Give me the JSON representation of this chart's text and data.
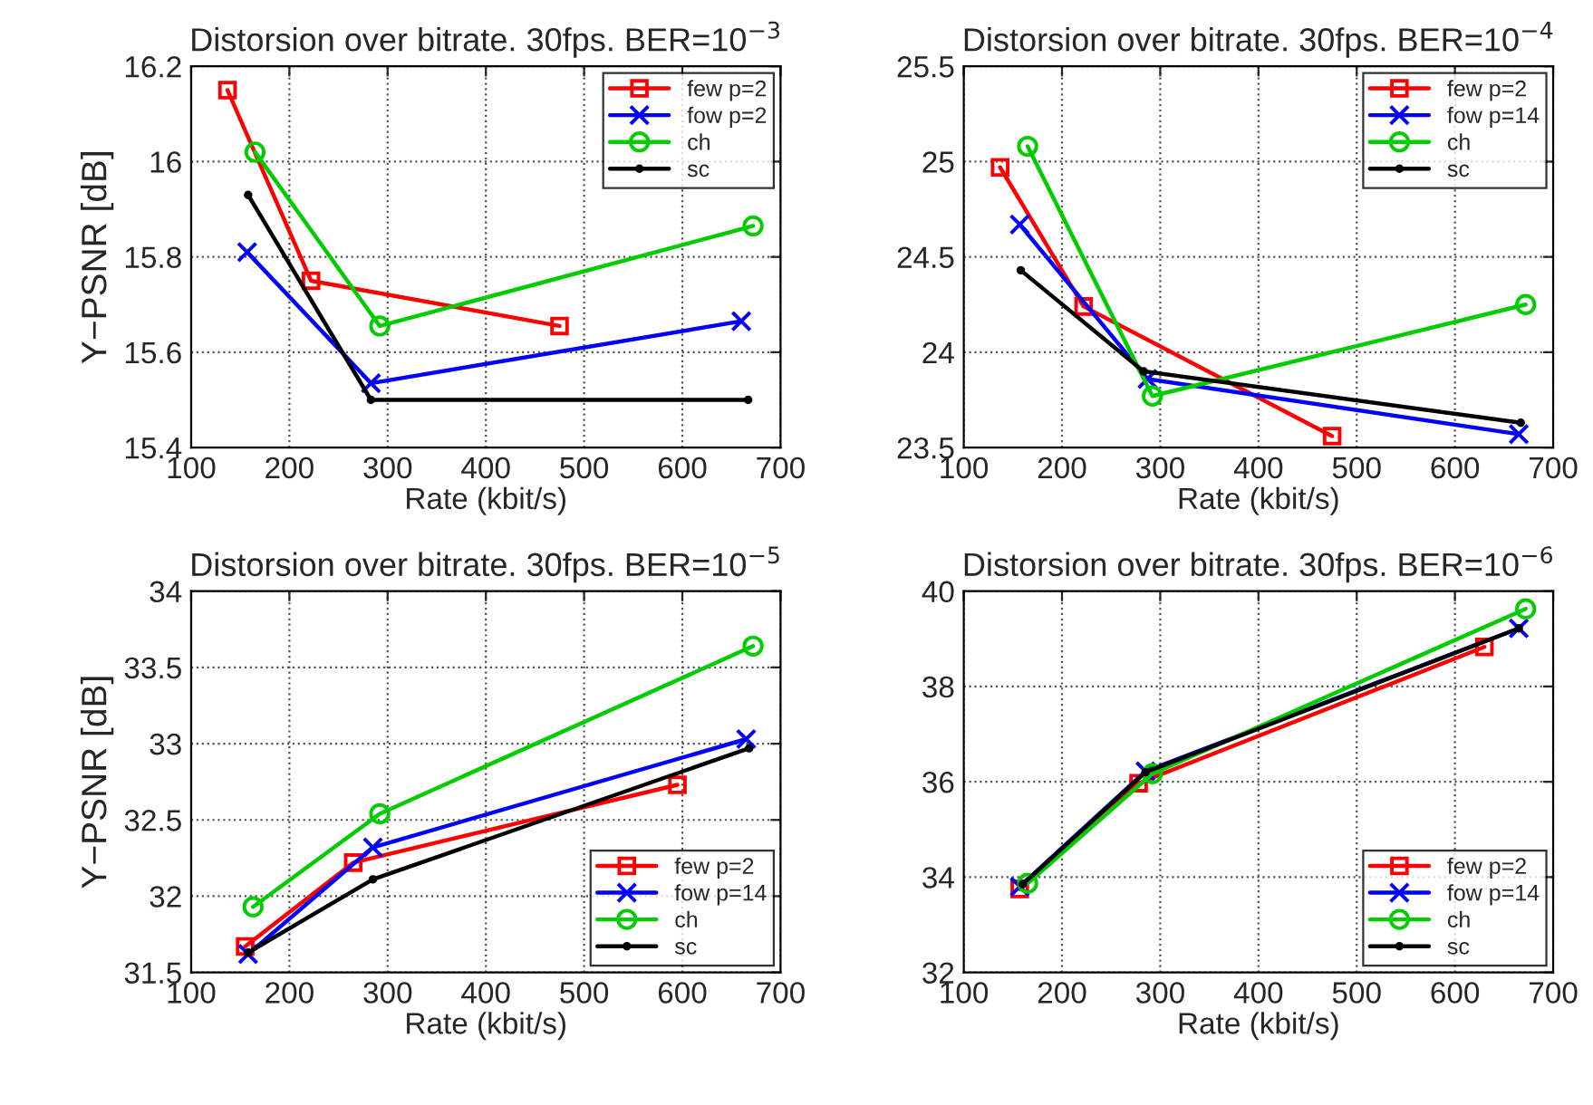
{
  "chart_data": [
    {
      "type": "line",
      "title": "Distorsion over bitrate. 30fps. BER=10$^{−3}$",
      "xlabel": "Rate (kbit/s)",
      "ylabel": "Y−PSNR [dB]",
      "xlim": [
        100,
        700
      ],
      "xticks": [
        100,
        200,
        300,
        400,
        500,
        600,
        700
      ],
      "ylim": [
        15.4,
        16.2
      ],
      "yticks": [
        15.4,
        15.6,
        15.8,
        16,
        16.2
      ],
      "grid": true,
      "legend": "top right",
      "series": [
        {
          "name": "few p=2",
          "color": "#ff0000",
          "marker": "square",
          "x": [
            137,
            222,
            475
          ],
          "values": [
            16.15,
            15.75,
            15.655
          ]
        },
        {
          "name": "fow p=2",
          "color": "#0000ff",
          "marker": "cross",
          "x": [
            157,
            283,
            660
          ],
          "values": [
            15.81,
            15.535,
            15.665
          ]
        },
        {
          "name": "ch",
          "color": "#00cc00",
          "marker": "circle",
          "x": [
            165,
            292,
            672
          ],
          "values": [
            16.02,
            15.655,
            15.865
          ]
        },
        {
          "name": "sc",
          "color": "#000000",
          "marker": "point",
          "x": [
            158,
            283,
            667
          ],
          "values": [
            15.93,
            15.5,
            15.5
          ]
        }
      ]
    },
    {
      "type": "line",
      "title": "Distorsion over bitrate. 30fps. BER=10$^{−4}$",
      "xlabel": "Rate (kbit/s)",
      "xlim": [
        100,
        700
      ],
      "xticks": [
        100,
        200,
        300,
        400,
        500,
        600,
        700
      ],
      "ylim": [
        23.5,
        25.5
      ],
      "yticks": [
        23.5,
        24,
        24.5,
        25,
        25.5
      ],
      "grid": true,
      "legend": "top right",
      "series": [
        {
          "name": "few p=2",
          "color": "#ff0000",
          "marker": "square",
          "x": [
            137,
            222,
            475
          ],
          "values": [
            24.97,
            24.24,
            23.56
          ]
        },
        {
          "name": "fow p=14",
          "color": "#0000ff",
          "marker": "cross",
          "x": [
            157,
            287,
            665
          ],
          "values": [
            24.67,
            23.86,
            23.57
          ]
        },
        {
          "name": "ch",
          "color": "#00cc00",
          "marker": "circle",
          "x": [
            165,
            292,
            672
          ],
          "values": [
            25.08,
            23.77,
            24.25
          ]
        },
        {
          "name": "sc",
          "color": "#000000",
          "marker": "point",
          "x": [
            158,
            283,
            667
          ],
          "values": [
            24.43,
            23.9,
            23.63
          ]
        }
      ]
    },
    {
      "type": "line",
      "title": "Distorsion over bitrate. 30fps. BER=10$^{−5}$",
      "xlabel": "Rate (kbit/s)",
      "ylabel": "Y−PSNR [dB]",
      "xlim": [
        100,
        700
      ],
      "xticks": [
        100,
        200,
        300,
        400,
        500,
        600,
        700
      ],
      "ylim": [
        31.5,
        34
      ],
      "yticks": [
        31.5,
        32,
        32.5,
        33,
        33.5,
        34
      ],
      "grid": true,
      "legend": "bottom right",
      "series": [
        {
          "name": "few p=2",
          "color": "#ff0000",
          "marker": "square",
          "x": [
            155,
            265,
            595
          ],
          "values": [
            31.67,
            32.22,
            32.73
          ]
        },
        {
          "name": "fow p=14",
          "color": "#0000ff",
          "marker": "cross",
          "x": [
            158,
            285,
            665
          ],
          "values": [
            31.62,
            32.32,
            33.03
          ]
        },
        {
          "name": "ch",
          "color": "#00cc00",
          "marker": "circle",
          "x": [
            163,
            292,
            672
          ],
          "values": [
            31.93,
            32.54,
            33.64
          ]
        },
        {
          "name": "sc",
          "color": "#000000",
          "marker": "point",
          "x": [
            158,
            285,
            668
          ],
          "values": [
            31.63,
            32.11,
            32.97
          ]
        }
      ]
    },
    {
      "type": "line",
      "title": "Distorsion over bitrate. 30fps. BER=10$^{−6}$",
      "xlabel": "Rate (kbit/s)",
      "xlim": [
        100,
        700
      ],
      "xticks": [
        100,
        200,
        300,
        400,
        500,
        600,
        700
      ],
      "ylim": [
        32,
        40
      ],
      "yticks": [
        32,
        34,
        36,
        38,
        40
      ],
      "grid": true,
      "legend": "bottom right",
      "series": [
        {
          "name": "few p=2",
          "color": "#ff0000",
          "marker": "square",
          "x": [
            157,
            278,
            630
          ],
          "values": [
            33.75,
            35.97,
            38.83
          ]
        },
        {
          "name": "fow p=14",
          "color": "#0000ff",
          "marker": "cross",
          "x": [
            157,
            285,
            665
          ],
          "values": [
            33.8,
            36.22,
            39.22
          ]
        },
        {
          "name": "ch",
          "color": "#00cc00",
          "marker": "circle",
          "x": [
            165,
            292,
            672
          ],
          "values": [
            33.87,
            36.17,
            39.63
          ]
        },
        {
          "name": "sc",
          "color": "#000000",
          "marker": "point",
          "x": [
            160,
            285,
            665
          ],
          "values": [
            33.85,
            36.2,
            39.22
          ]
        }
      ]
    }
  ]
}
